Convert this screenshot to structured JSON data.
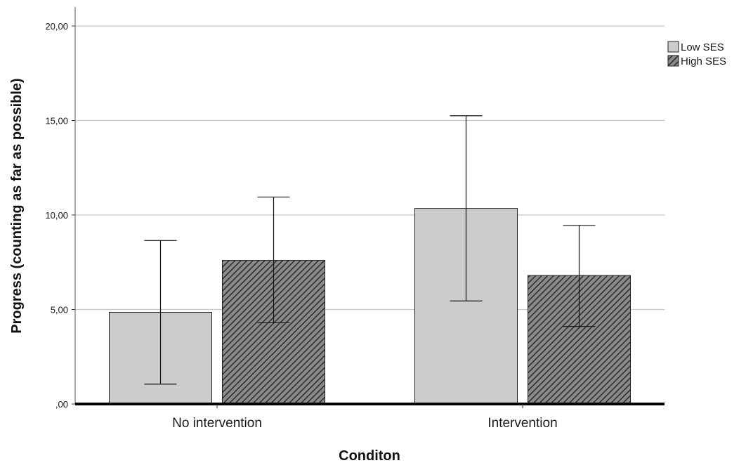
{
  "chart_data": {
    "type": "bar",
    "title": "",
    "xlabel": "Conditon",
    "ylabel": "Progress (counting as far as possible)",
    "ylim": [
      0,
      20
    ],
    "yticks": [
      0,
      5,
      10,
      15,
      20
    ],
    "ytick_labels": [
      ",00",
      "5,00",
      "10,00",
      "15,00",
      "20,00"
    ],
    "grid": true,
    "legend_position": "top-right",
    "categories": [
      "No intervention",
      "Intervention"
    ],
    "series": [
      {
        "name": "Low SES",
        "values": [
          4.85,
          10.35
        ],
        "error_low": [
          1.05,
          5.45
        ],
        "error_high": [
          8.65,
          15.25
        ],
        "color": "#cccccc",
        "pattern": "solid"
      },
      {
        "name": "High SES",
        "values": [
          7.6,
          6.8
        ],
        "error_low": [
          4.3,
          4.1
        ],
        "error_high": [
          10.95,
          9.45
        ],
        "color": "#7f7f7f",
        "pattern": "hatched"
      }
    ]
  }
}
